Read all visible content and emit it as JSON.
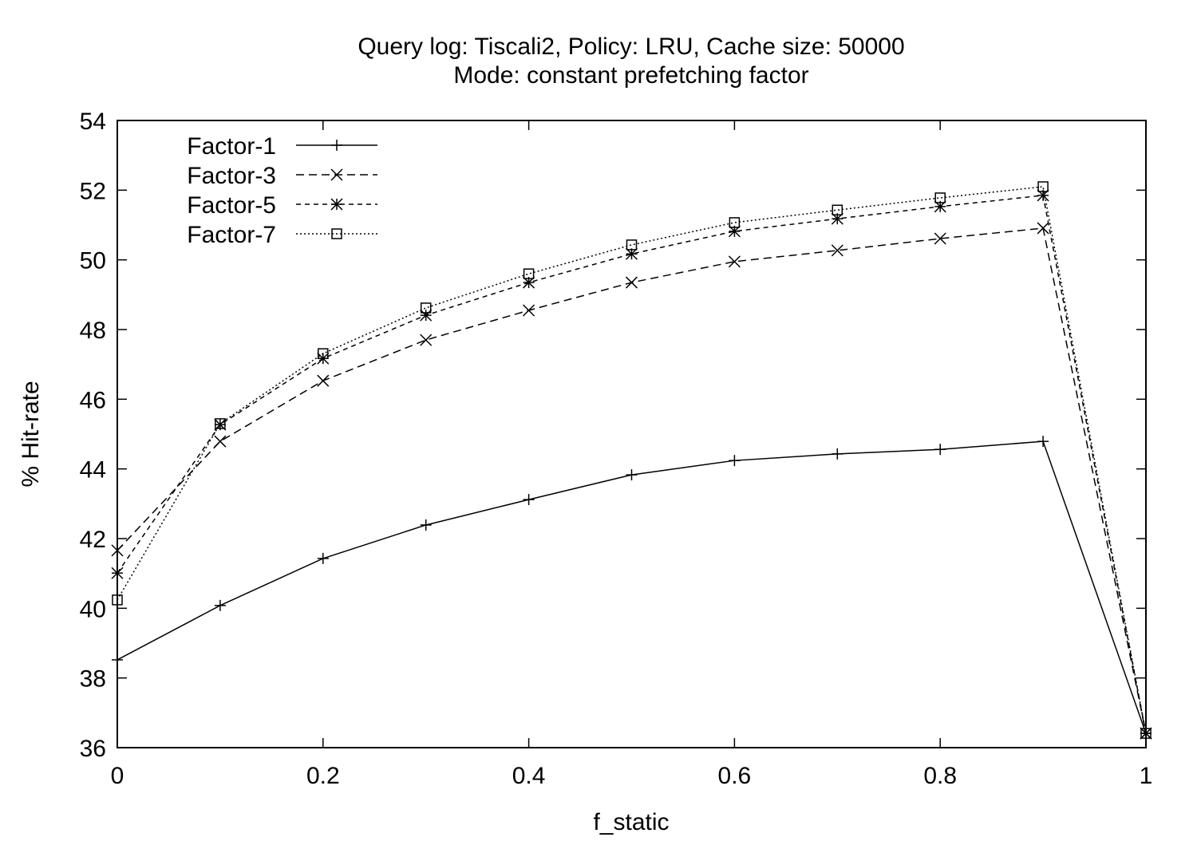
{
  "chart_data": {
    "type": "line",
    "title": "Query log: Tiscali2, Policy: LRU, Cache size: 50000",
    "subtitle": "Mode: constant prefetching factor",
    "xlabel": "f_static",
    "ylabel": "% Hit-rate",
    "xlim": [
      0,
      1
    ],
    "ylim": [
      36,
      54
    ],
    "xticks": [
      "0",
      "0.2",
      "0.4",
      "0.6",
      "0.8",
      "1"
    ],
    "xtick_values": [
      0,
      0.2,
      0.4,
      0.6,
      0.8,
      1
    ],
    "yticks": [
      "36",
      "38",
      "40",
      "42",
      "44",
      "46",
      "48",
      "50",
      "52",
      "54"
    ],
    "ytick_values": [
      36,
      38,
      40,
      42,
      44,
      46,
      48,
      50,
      52,
      54
    ],
    "grid": false,
    "legend_position": "top-left",
    "x": [
      0,
      0.1,
      0.2,
      0.3,
      0.4,
      0.5,
      0.6,
      0.7,
      0.8,
      0.9,
      1.0
    ],
    "series": [
      {
        "name": "Factor-1",
        "marker": "plus",
        "dash": "solid",
        "values": [
          38.52,
          40.08,
          41.43,
          42.39,
          43.12,
          43.83,
          44.24,
          44.43,
          44.56,
          44.79,
          36.41
        ]
      },
      {
        "name": "Factor-3",
        "marker": "cross",
        "dash": "long-dash",
        "values": [
          41.66,
          44.79,
          46.53,
          47.7,
          48.55,
          49.35,
          49.95,
          50.27,
          50.61,
          50.91,
          36.41
        ]
      },
      {
        "name": "Factor-5",
        "marker": "star",
        "dash": "short-dash",
        "values": [
          41.01,
          45.27,
          47.17,
          48.41,
          49.35,
          50.17,
          50.82,
          51.18,
          51.53,
          51.85,
          36.41
        ]
      },
      {
        "name": "Factor-7",
        "marker": "square",
        "dash": "dotted",
        "values": [
          40.24,
          45.3,
          47.31,
          48.62,
          49.6,
          50.43,
          51.07,
          51.43,
          51.78,
          52.1,
          36.41
        ]
      }
    ]
  }
}
